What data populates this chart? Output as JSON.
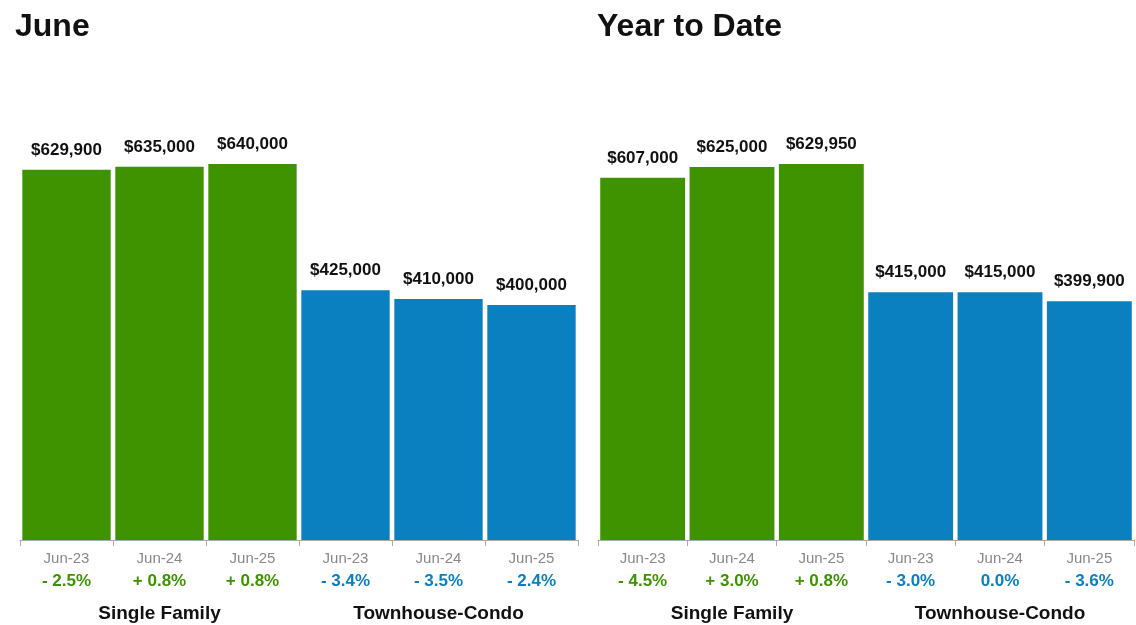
{
  "chart_data": [
    {
      "type": "bar",
      "title": "June",
      "categories": [
        "Jun-23",
        "Jun-24",
        "Jun-25",
        "Jun-23",
        "Jun-24",
        "Jun-25"
      ],
      "series": [
        {
          "color": "#3f9200",
          "values": [
            629900,
            635000,
            640000,
            null,
            null,
            null
          ],
          "value_labels": [
            "$629,900",
            "$635,000",
            "$640,000",
            null,
            null,
            null
          ]
        },
        {
          "color": "#0b80c0",
          "values": [
            null,
            null,
            null,
            425000,
            410000,
            400000
          ],
          "value_labels": [
            null,
            null,
            null,
            "$425,000",
            "$410,000",
            "$400,000"
          ]
        }
      ],
      "annotations": [
        "- 2.5%",
        "+ 0.8%",
        "+ 0.8%",
        "- 3.4%",
        "- 3.5%",
        "- 2.4%",
        "Single Family",
        "Townhouse-Condo"
      ]
    },
    {
      "type": "bar",
      "title": "Year to Date",
      "categories": [
        "Jun-23",
        "Jun-24",
        "Jun-25",
        "Jun-23",
        "Jun-24",
        "Jun-25"
      ],
      "series": [
        {
          "color": "#3f9200",
          "values": [
            607000,
            625000,
            629950,
            null,
            null,
            null
          ],
          "value_labels": [
            "$607,000",
            "$625,000",
            "$629,950",
            null,
            null,
            null
          ]
        },
        {
          "color": "#0b80c0",
          "values": [
            null,
            null,
            null,
            415000,
            415000,
            399900
          ],
          "value_labels": [
            null,
            null,
            null,
            "$415,000",
            "$415,000",
            "$399,900"
          ]
        }
      ],
      "annotations": [
        "- 4.5%",
        "+ 3.0%",
        "+ 0.8%",
        "- 3.0%",
        "0.0%",
        "- 3.6%",
        "Single Family",
        "Townhouse-Condo"
      ]
    }
  ]
}
